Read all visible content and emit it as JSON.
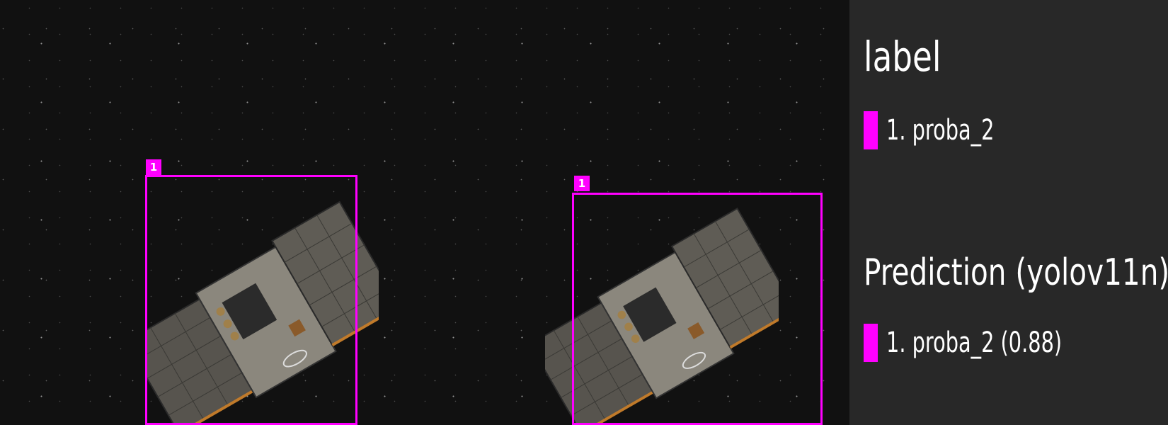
{
  "label_panel": {
    "title": "label",
    "items": [
      {
        "text": "1. proba_2",
        "color": "#ff00ff"
      }
    ]
  },
  "prediction_panel": {
    "title": "Prediction (yolov11n)",
    "items": [
      {
        "text": "1. proba_2 (0.88)",
        "color": "#ff00ff"
      }
    ]
  },
  "images": [
    {
      "name": "ground-truth",
      "boxes": [
        {
          "tag": "1",
          "color": "#ff00ff"
        }
      ]
    },
    {
      "name": "prediction",
      "boxes": [
        {
          "tag": "1",
          "color": "#ff00ff"
        }
      ]
    }
  ]
}
